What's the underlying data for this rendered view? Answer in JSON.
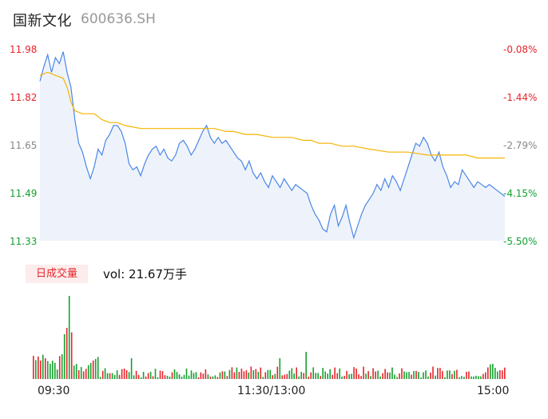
{
  "header": {
    "name": "国新文化",
    "code": "600636.SH"
  },
  "volume": {
    "badge": "日成交量",
    "label": "vol: 21.67万手"
  },
  "colors": {
    "price": "#4a86e8",
    "avg": "#f5b400",
    "up": "#e8242b",
    "down": "#14a02f",
    "fill": "#eef3fb"
  },
  "chart_data": {
    "type": "line",
    "title": "",
    "x_ticks": [
      "09:30",
      "11:30/13:00",
      "15:00"
    ],
    "y_left_ticks": [
      "11.98",
      "11.82",
      "11.65",
      "11.49",
      "11.33"
    ],
    "y_right_ticks": [
      "-0.08%",
      "-1.44%",
      "-2.79%",
      "-4.15%",
      "-5.50%"
    ],
    "ylim": [
      11.33,
      11.98
    ],
    "minutes": 240,
    "price": [
      [
        0,
        11.87
      ],
      [
        2,
        11.92
      ],
      [
        4,
        11.96
      ],
      [
        6,
        11.9
      ],
      [
        8,
        11.95
      ],
      [
        10,
        11.93
      ],
      [
        12,
        11.97
      ],
      [
        14,
        11.9
      ],
      [
        16,
        11.85
      ],
      [
        18,
        11.74
      ],
      [
        20,
        11.66
      ],
      [
        22,
        11.63
      ],
      [
        24,
        11.58
      ],
      [
        26,
        11.54
      ],
      [
        28,
        11.58
      ],
      [
        30,
        11.64
      ],
      [
        32,
        11.62
      ],
      [
        34,
        11.67
      ],
      [
        36,
        11.69
      ],
      [
        38,
        11.72
      ],
      [
        40,
        11.72
      ],
      [
        42,
        11.7
      ],
      [
        44,
        11.66
      ],
      [
        46,
        11.59
      ],
      [
        48,
        11.57
      ],
      [
        50,
        11.58
      ],
      [
        52,
        11.55
      ],
      [
        54,
        11.59
      ],
      [
        56,
        11.62
      ],
      [
        58,
        11.64
      ],
      [
        60,
        11.65
      ],
      [
        62,
        11.62
      ],
      [
        64,
        11.64
      ],
      [
        66,
        11.61
      ],
      [
        68,
        11.6
      ],
      [
        70,
        11.62
      ],
      [
        72,
        11.66
      ],
      [
        74,
        11.67
      ],
      [
        76,
        11.65
      ],
      [
        78,
        11.62
      ],
      [
        80,
        11.64
      ],
      [
        82,
        11.67
      ],
      [
        84,
        11.7
      ],
      [
        86,
        11.72
      ],
      [
        88,
        11.68
      ],
      [
        90,
        11.66
      ],
      [
        92,
        11.68
      ],
      [
        94,
        11.66
      ],
      [
        96,
        11.67
      ],
      [
        98,
        11.65
      ],
      [
        100,
        11.63
      ],
      [
        102,
        11.61
      ],
      [
        104,
        11.6
      ],
      [
        106,
        11.57
      ],
      [
        108,
        11.6
      ],
      [
        110,
        11.56
      ],
      [
        112,
        11.54
      ],
      [
        114,
        11.56
      ],
      [
        116,
        11.53
      ],
      [
        118,
        11.51
      ],
      [
        120,
        11.55
      ],
      [
        122,
        11.53
      ],
      [
        124,
        11.51
      ],
      [
        126,
        11.54
      ],
      [
        128,
        11.52
      ],
      [
        130,
        11.5
      ],
      [
        132,
        11.52
      ],
      [
        134,
        11.51
      ],
      [
        136,
        11.5
      ],
      [
        138,
        11.49
      ],
      [
        140,
        11.45
      ],
      [
        142,
        11.42
      ],
      [
        144,
        11.4
      ],
      [
        146,
        11.37
      ],
      [
        148,
        11.36
      ],
      [
        150,
        11.42
      ],
      [
        152,
        11.45
      ],
      [
        154,
        11.38
      ],
      [
        156,
        11.41
      ],
      [
        158,
        11.45
      ],
      [
        160,
        11.39
      ],
      [
        162,
        11.34
      ],
      [
        164,
        11.38
      ],
      [
        166,
        11.42
      ],
      [
        168,
        11.45
      ],
      [
        170,
        11.47
      ],
      [
        172,
        11.49
      ],
      [
        174,
        11.52
      ],
      [
        176,
        11.5
      ],
      [
        178,
        11.54
      ],
      [
        180,
        11.51
      ],
      [
        182,
        11.55
      ],
      [
        184,
        11.53
      ],
      [
        186,
        11.5
      ],
      [
        188,
        11.54
      ],
      [
        190,
        11.58
      ],
      [
        192,
        11.62
      ],
      [
        194,
        11.66
      ],
      [
        196,
        11.65
      ],
      [
        198,
        11.68
      ],
      [
        200,
        11.66
      ],
      [
        202,
        11.62
      ],
      [
        204,
        11.6
      ],
      [
        206,
        11.63
      ],
      [
        208,
        11.58
      ],
      [
        210,
        11.55
      ],
      [
        212,
        11.51
      ],
      [
        214,
        11.53
      ],
      [
        216,
        11.52
      ],
      [
        218,
        11.57
      ],
      [
        220,
        11.55
      ],
      [
        222,
        11.53
      ],
      [
        224,
        11.51
      ],
      [
        226,
        11.53
      ],
      [
        228,
        11.52
      ],
      [
        230,
        11.51
      ],
      [
        232,
        11.52
      ],
      [
        234,
        11.51
      ],
      [
        236,
        11.5
      ],
      [
        238,
        11.49
      ],
      [
        240,
        11.48
      ]
    ],
    "avg_price": [
      [
        0,
        11.89
      ],
      [
        4,
        11.9
      ],
      [
        8,
        11.89
      ],
      [
        12,
        11.88
      ],
      [
        14,
        11.85
      ],
      [
        16,
        11.8
      ],
      [
        18,
        11.77
      ],
      [
        22,
        11.76
      ],
      [
        28,
        11.76
      ],
      [
        32,
        11.74
      ],
      [
        36,
        11.73
      ],
      [
        40,
        11.73
      ],
      [
        44,
        11.72
      ],
      [
        52,
        11.71
      ],
      [
        60,
        11.71
      ],
      [
        70,
        11.71
      ],
      [
        80,
        11.71
      ],
      [
        90,
        11.71
      ],
      [
        96,
        11.7
      ],
      [
        100,
        11.7
      ],
      [
        106,
        11.69
      ],
      [
        112,
        11.69
      ],
      [
        120,
        11.68
      ],
      [
        130,
        11.68
      ],
      [
        136,
        11.67
      ],
      [
        140,
        11.67
      ],
      [
        144,
        11.66
      ],
      [
        150,
        11.66
      ],
      [
        156,
        11.65
      ],
      [
        162,
        11.65
      ],
      [
        170,
        11.64
      ],
      [
        180,
        11.63
      ],
      [
        190,
        11.63
      ],
      [
        200,
        11.62
      ],
      [
        210,
        11.62
      ],
      [
        220,
        11.62
      ],
      [
        226,
        11.61
      ],
      [
        240,
        11.61
      ]
    ],
    "volume_seed": 21.67
  }
}
